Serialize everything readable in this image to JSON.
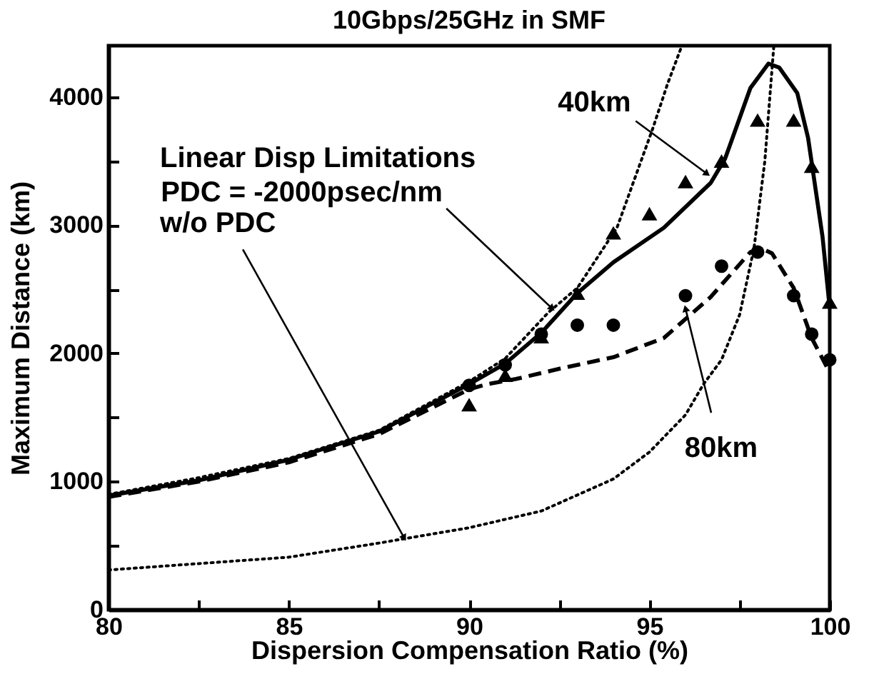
{
  "chart_data": {
    "type": "line",
    "title": "10Gbps/25GHz in SMF",
    "xlabel": "Dispersion Compensation Ratio (%)",
    "ylabel": "Maximum Distance (km)",
    "xlim": [
      80,
      100
    ],
    "ylim": [
      0,
      4400
    ],
    "xticks": [
      80,
      {
        "value": 82.5,
        "label": null
      },
      85,
      {
        "value": 87.5,
        "label": null
      },
      90,
      {
        "value": 92.5,
        "label": null
      },
      95,
      {
        "value": 97.5,
        "label": null
      },
      100
    ],
    "yticks": [
      0,
      {
        "value": 500,
        "label": null
      },
      1000,
      {
        "value": 1500,
        "label": null
      },
      2000,
      {
        "value": 2500,
        "label": null
      },
      3000,
      {
        "value": 3500,
        "label": null
      },
      4000
    ],
    "series": [
      {
        "type": "line",
        "line_style": "solid",
        "color": "#000000",
        "x": [
          80,
          82.5,
          85,
          87.5,
          90,
          91,
          92,
          93,
          94,
          95.4,
          96.7,
          97.1,
          97.8,
          98.3,
          98.6,
          99.1,
          99.4,
          99.8,
          100
        ],
        "values": [
          890,
          1010,
          1170,
          1390,
          1760,
          1920,
          2160,
          2470,
          2710,
          2980,
          3330,
          3520,
          4070,
          4260,
          4230,
          4030,
          3680,
          2910,
          2350
        ]
      },
      {
        "type": "line",
        "line_style": "dashed",
        "color": "#000000",
        "x": [
          80,
          82.5,
          85,
          87.5,
          89,
          90,
          90.5,
          91.3,
          92.5,
          94,
          95.4,
          96.7,
          97.8,
          98.1,
          98.4,
          99,
          99.5,
          100
        ],
        "values": [
          880,
          1000,
          1150,
          1370,
          1580,
          1720,
          1760,
          1800,
          1880,
          1970,
          2120,
          2440,
          2790,
          2820,
          2780,
          2510,
          2120,
          1850
        ]
      },
      {
        "type": "line",
        "line_style": "dotted",
        "color": "#000000",
        "x": [
          80,
          82.5,
          85,
          87.5,
          90,
          91,
          92.2,
          93,
          94.1,
          95.1,
          95.5,
          95.9
        ],
        "values": [
          900,
          1030,
          1180,
          1400,
          1780,
          1960,
          2320,
          2510,
          2980,
          3760,
          4100,
          4400
        ]
      },
      {
        "type": "line",
        "line_style": "dotted",
        "color": "#000000",
        "x": [
          80,
          85,
          87.5,
          90,
          92,
          94,
          95,
          96,
          96.5,
          97,
          97.5,
          97.9,
          98.2,
          98.45
        ],
        "values": [
          310,
          410,
          520,
          640,
          770,
          1020,
          1230,
          1520,
          1760,
          1950,
          2300,
          2820,
          3500,
          4400
        ]
      },
      {
        "type": "scatter",
        "marker": "circle",
        "color": "#000000",
        "x": [
          90,
          91,
          92,
          93,
          94,
          96,
          97,
          98,
          99,
          99.5,
          100
        ],
        "values": [
          1750,
          1910,
          2150,
          2220,
          2220,
          2450,
          2680,
          2790,
          2450,
          2150,
          1950
        ]
      },
      {
        "type": "scatter",
        "marker": "triangle",
        "color": "#000000",
        "x": [
          90,
          91,
          92,
          93,
          94,
          95,
          96,
          97,
          98,
          99,
          99.5,
          100
        ],
        "values": [
          1600,
          1830,
          2130,
          2470,
          2940,
          3090,
          3340,
          3500,
          3820,
          3820,
          3460,
          2400
        ]
      }
    ],
    "annotations": [
      "Linear Disp Limitations",
      {
        "text": "PDC = -2000psec/nm",
        "x": 92.3,
        "y": 2350
      },
      {
        "text": "w/o PDC",
        "x": 88.2,
        "y": 560
      },
      {
        "text": "40km",
        "x": 96.6,
        "y": 3400
      },
      {
        "text": "80km",
        "x": 96,
        "y": 2350
      }
    ]
  }
}
